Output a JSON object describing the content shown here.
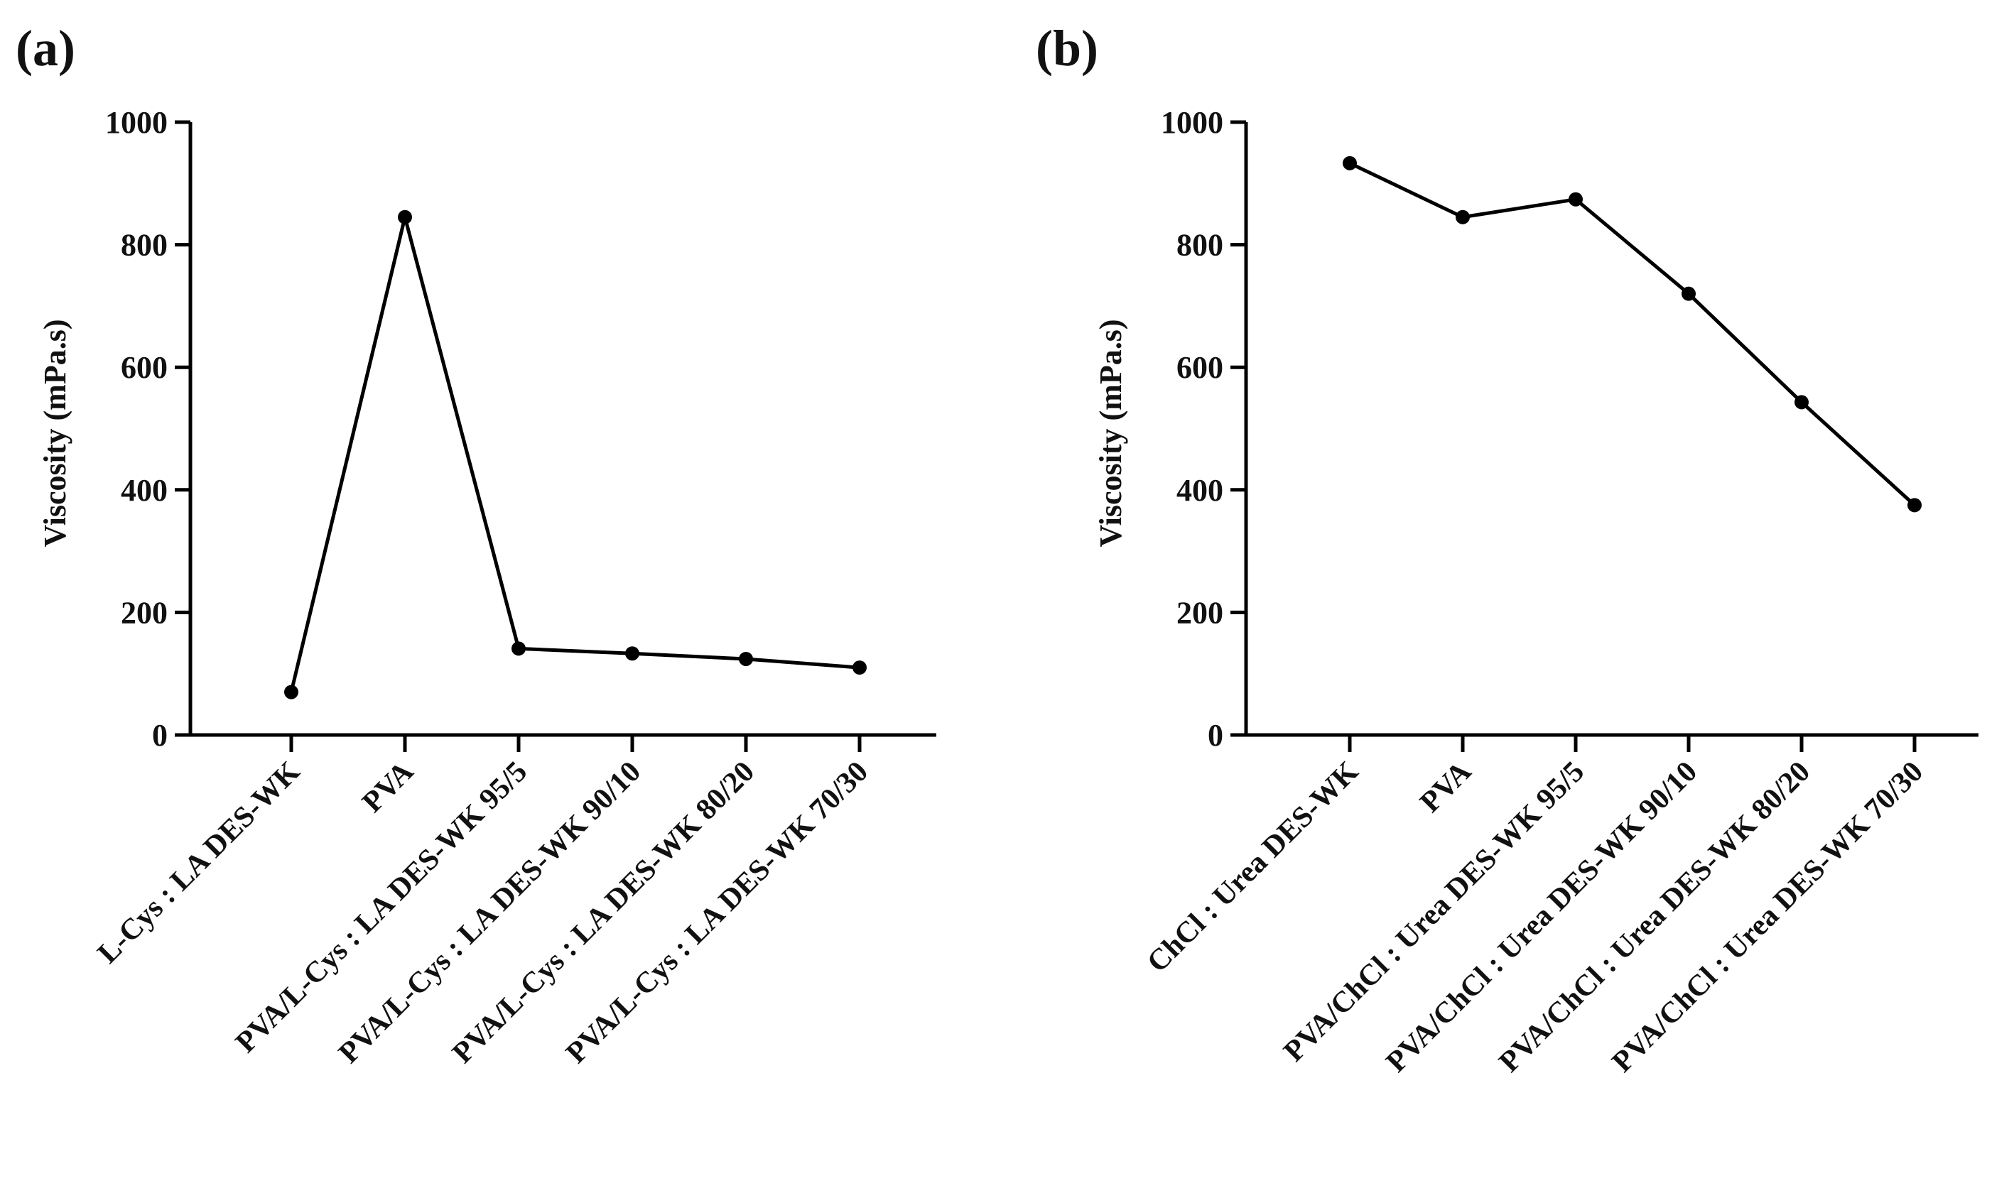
{
  "figure": {
    "panels": [
      {
        "label": "(a)"
      },
      {
        "label": "(b)"
      }
    ]
  },
  "chart_data": [
    {
      "type": "line",
      "title": "",
      "panel_label": "(a)",
      "xlabel": "",
      "ylabel": "Viscosity (mPa.s)",
      "ylim": [
        0,
        1000
      ],
      "yticks": [
        0,
        200,
        400,
        600,
        800,
        1000
      ],
      "grid": false,
      "categories": [
        "L-Cys : LA DES-WK",
        "PVA",
        "PVA/L-Cys : LA DES-WK 95/5",
        "PVA/L-Cys : LA DES-WK 90/10",
        "PVA/L-Cys : LA DES-WK 80/20",
        "PVA/L-Cys : LA DES-WK 70/30"
      ],
      "series": [
        {
          "values": [
            70,
            845,
            141,
            133,
            124,
            110
          ]
        }
      ],
      "line_color": "#000000"
    },
    {
      "type": "line",
      "title": "",
      "panel_label": "(b)",
      "xlabel": "",
      "ylabel": "Viscosity (mPa.s)",
      "ylim": [
        0,
        1000
      ],
      "yticks": [
        0,
        200,
        400,
        600,
        800,
        1000
      ],
      "grid": false,
      "categories": [
        "ChCl : Urea DES-WK",
        "PVA",
        "PVA/ChCl : Urea DES-WK 95/5",
        "PVA/ChCl : Urea DES-WK 90/10",
        "PVA/ChCl : Urea DES-WK 80/20",
        "PVA/ChCl : Urea DES-WK 70/30"
      ],
      "series": [
        {
          "values": [
            933,
            845,
            874,
            720,
            543,
            375
          ]
        }
      ],
      "line_color": "#000000"
    }
  ]
}
